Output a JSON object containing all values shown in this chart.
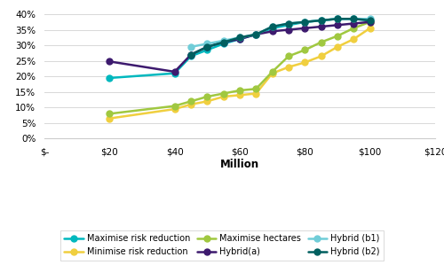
{
  "series": {
    "Maximise risk reduction": {
      "color": "#00B8BE",
      "x": [
        20,
        40,
        45,
        50,
        55,
        60,
        65,
        70,
        75,
        80,
        85,
        90,
        95,
        100
      ],
      "y": [
        0.195,
        0.21,
        0.265,
        0.285,
        0.305,
        0.32,
        0.335,
        0.355,
        0.365,
        0.375,
        0.38,
        0.385,
        0.385,
        0.38
      ]
    },
    "Minimise risk reduction": {
      "color": "#F0CF3F",
      "x": [
        20,
        40,
        45,
        50,
        55,
        60,
        65,
        70,
        75,
        80,
        85,
        90,
        95,
        100
      ],
      "y": [
        0.065,
        0.095,
        0.11,
        0.12,
        0.135,
        0.14,
        0.145,
        0.21,
        0.23,
        0.245,
        0.265,
        0.295,
        0.32,
        0.355
      ]
    },
    "Maximise hectares": {
      "color": "#A0C840",
      "x": [
        20,
        40,
        45,
        50,
        55,
        60,
        65,
        70,
        75,
        80,
        85,
        90,
        95,
        100
      ],
      "y": [
        0.08,
        0.105,
        0.12,
        0.135,
        0.145,
        0.155,
        0.16,
        0.215,
        0.265,
        0.285,
        0.31,
        0.33,
        0.355,
        0.375
      ]
    },
    "Hybrid(a)": {
      "color": "#3D1A6E",
      "x": [
        20,
        40,
        45,
        50,
        55,
        60,
        65,
        70,
        75,
        80,
        85,
        90,
        95,
        100
      ],
      "y": [
        0.248,
        0.215,
        0.27,
        0.295,
        0.31,
        0.32,
        0.335,
        0.345,
        0.35,
        0.355,
        0.36,
        0.365,
        0.37,
        0.375
      ]
    },
    "Hybrid (b1)": {
      "color": "#70CDD8",
      "x": [
        45,
        50,
        55,
        60,
        65,
        70,
        75,
        80,
        85,
        90,
        95,
        100
      ],
      "y": [
        0.295,
        0.305,
        0.315,
        0.325,
        0.335,
        0.36,
        0.37,
        0.375,
        0.38,
        0.385,
        0.385,
        0.385
      ]
    },
    "Hybrid (b2)": {
      "color": "#005F5F",
      "x": [
        45,
        50,
        55,
        60,
        65,
        70,
        75,
        80,
        85,
        90,
        95,
        100
      ],
      "y": [
        0.27,
        0.295,
        0.31,
        0.325,
        0.335,
        0.36,
        0.37,
        0.375,
        0.38,
        0.385,
        0.385,
        0.38
      ]
    }
  },
  "xlim": [
    0,
    120
  ],
  "ylim": [
    0,
    0.42
  ],
  "xticks": [
    0,
    20,
    40,
    60,
    80,
    100,
    120
  ],
  "xtick_labels": [
    "$-",
    "$20",
    "$40",
    "$60",
    "$80",
    "$100",
    "$120"
  ],
  "yticks": [
    0,
    0.05,
    0.1,
    0.15,
    0.2,
    0.25,
    0.3,
    0.35,
    0.4
  ],
  "ytick_labels": [
    "0%",
    "5%",
    "10%",
    "15%",
    "20%",
    "25%",
    "30%",
    "35%",
    "40%"
  ],
  "xlabel": "Million",
  "background_color": "#ffffff",
  "grid_color": "#d8d8d8",
  "marker": "o",
  "marker_size": 5,
  "linewidth": 1.8,
  "legend_order": [
    "Maximise risk reduction",
    "Minimise risk reduction",
    "Maximise hectares",
    "Hybrid(a)",
    "Hybrid (b1)",
    "Hybrid (b2)"
  ]
}
